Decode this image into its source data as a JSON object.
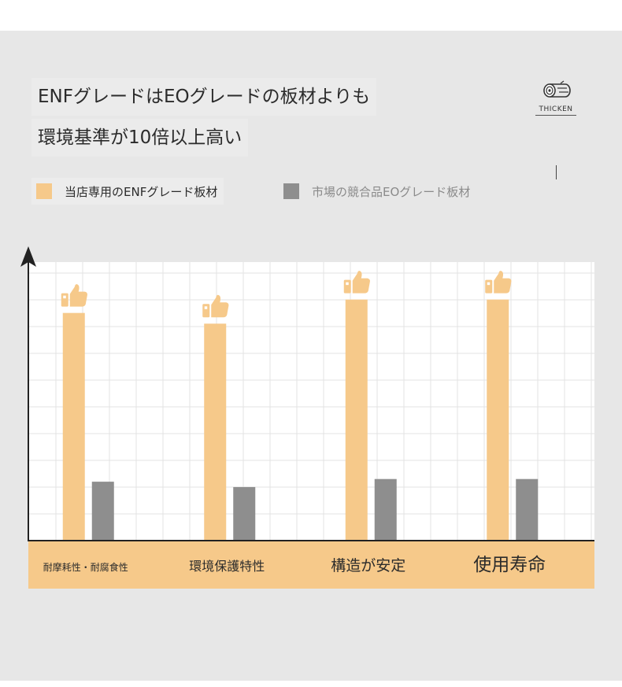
{
  "title": {
    "line1": "ENFグレードはEOグレードの板材よりも",
    "line2": "環境基準が10倍以上高い"
  },
  "brand": {
    "label": "THICKEN",
    "icon": "wood-log-icon"
  },
  "legend": {
    "items": [
      {
        "label": "当店専用のENFグレード板材",
        "color": "#f6c98a"
      },
      {
        "label": "市場の競合品EOグレード板材",
        "color": "#8e8e8e"
      }
    ]
  },
  "colors": {
    "primary": "#f6c98a",
    "secondary": "#8e8e8e",
    "band": "#f6c98a",
    "grid": "#e3e3e3",
    "axis": "#222222"
  },
  "chart_data": {
    "type": "bar",
    "categories": [
      "耐摩耗性・耐腐食性",
      "環境保護特性",
      "構造が安定",
      "使用寿命"
    ],
    "series": [
      {
        "name": "当店専用のENFグレード板材",
        "values": [
          85,
          81,
          90,
          90
        ]
      },
      {
        "name": "市場の競合品EOグレード板材",
        "values": [
          22,
          20,
          23,
          23
        ]
      }
    ],
    "ylim": [
      0,
      104
    ],
    "grid": true,
    "legend_position": "top-left",
    "annotations": [
      "thumbs-up-icon on each ENF bar"
    ]
  }
}
